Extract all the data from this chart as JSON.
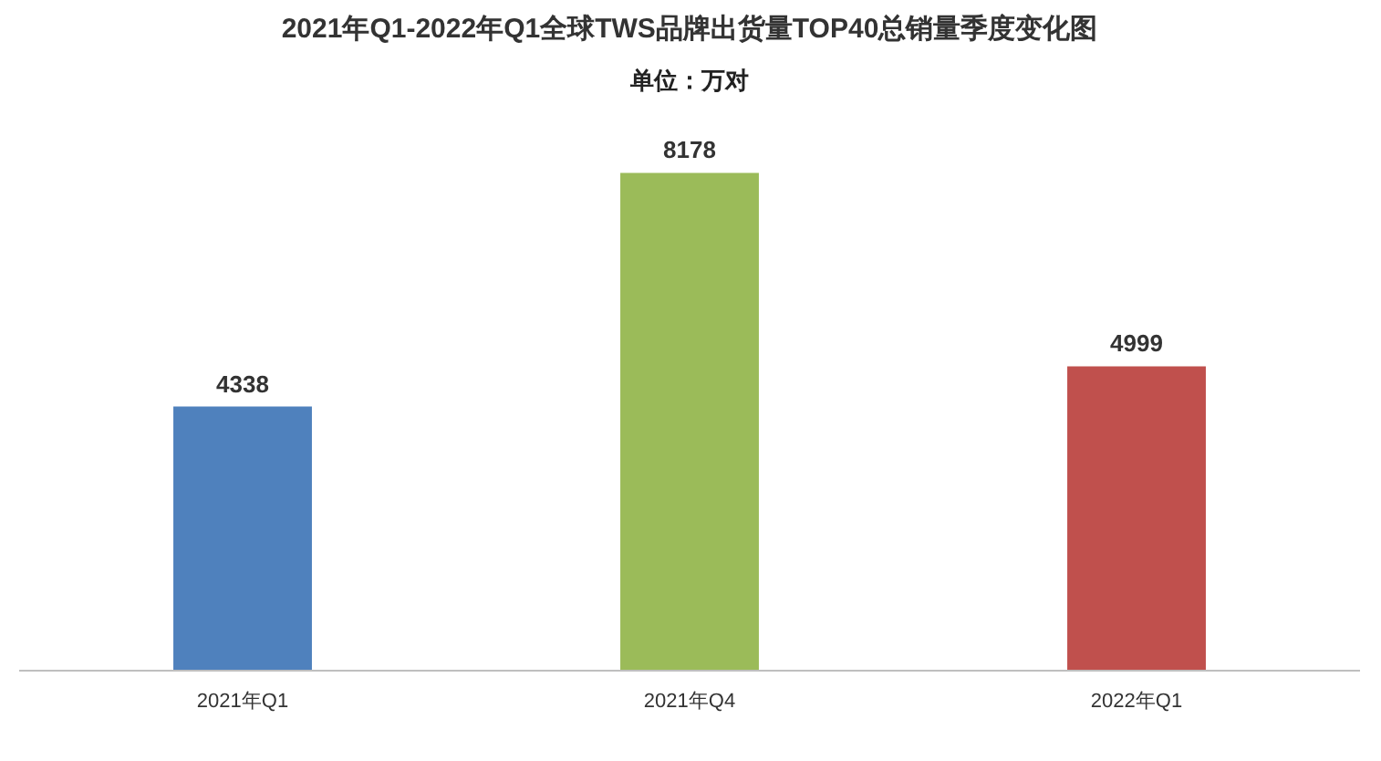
{
  "chart_data": {
    "type": "bar",
    "title": "2021年Q1-2022年Q1全球TWS品牌出货量TOP40总销量季度变化图",
    "subtitle": "单位：万对",
    "categories": [
      "2021年Q1",
      "2021年Q4",
      "2022年Q1"
    ],
    "values": [
      4338,
      8178,
      4999
    ],
    "colors": [
      "#4f81bd",
      "#9bbb59",
      "#c0504d"
    ],
    "data_labels": true
  }
}
